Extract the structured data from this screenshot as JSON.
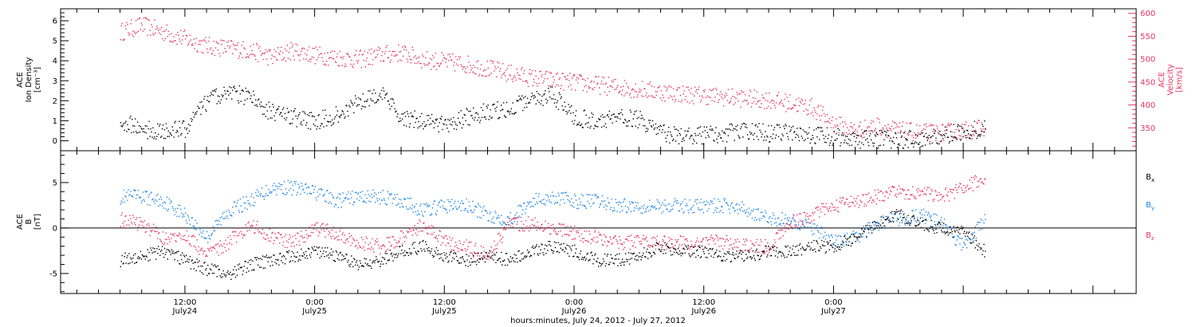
{
  "chart_data": [
    {
      "type": "scatter",
      "panel": "top",
      "y_axis_label_lines": [
        "ACE",
        "Ion Density",
        "[cm⁻³]"
      ],
      "y2_axis_label_lines": [
        "ACE",
        "Velocity",
        "[km/s]"
      ],
      "ylim": [
        -0.5,
        6.6
      ],
      "y2lim": [
        300,
        610
      ],
      "yticks": [
        "0",
        "1",
        "2",
        "3",
        "4",
        "5",
        "6"
      ],
      "y2ticks": [
        "350",
        "400",
        "450",
        "500",
        "550",
        "600"
      ],
      "colors": {
        "density": "#000000",
        "velocity": "#e8335e"
      },
      "series": [
        {
          "axis": "left",
          "color": "#000000",
          "x": [
            0,
            2,
            4,
            6,
            8,
            10,
            12,
            14,
            16,
            18,
            20,
            22,
            24,
            26,
            28,
            30,
            32,
            34,
            36,
            38,
            40,
            42,
            44,
            46,
            48,
            50,
            52,
            54,
            56,
            58,
            60,
            62,
            64,
            66,
            68,
            70,
            72,
            74,
            76,
            78,
            80
          ],
          "values": [
            1.0,
            0.6,
            0.5,
            0.6,
            2.0,
            2.5,
            2.2,
            1.4,
            1.2,
            1.0,
            1.3,
            2.0,
            2.4,
            1.2,
            1.0,
            0.8,
            1.2,
            1.5,
            1.6,
            2.1,
            2.3,
            1.2,
            1.0,
            1.2,
            1.1,
            0.4,
            0.3,
            0.3,
            0.4,
            0.5,
            0.4,
            0.4,
            0.3,
            0.2,
            0.1,
            0.1,
            0.1,
            0.1,
            0.3,
            0.5,
            0.6
          ]
        },
        {
          "axis": "right",
          "color": "#e8335e",
          "x": [
            0,
            2,
            4,
            6,
            8,
            10,
            12,
            14,
            16,
            18,
            20,
            22,
            24,
            26,
            28,
            30,
            32,
            34,
            36,
            38,
            40,
            42,
            44,
            46,
            48,
            50,
            52,
            54,
            56,
            58,
            60,
            62,
            64,
            66,
            68,
            70,
            72,
            74,
            76,
            78,
            80
          ],
          "values": [
            560,
            575,
            560,
            545,
            530,
            525,
            520,
            505,
            520,
            510,
            505,
            500,
            510,
            515,
            500,
            495,
            490,
            480,
            470,
            460,
            455,
            450,
            445,
            440,
            435,
            430,
            425,
            422,
            418,
            415,
            412,
            405,
            395,
            360,
            345,
            355,
            345,
            340,
            340,
            345,
            350
          ]
        }
      ]
    },
    {
      "type": "scatter",
      "panel": "bottom",
      "y_axis_label_lines": [
        "ACE",
        "B",
        "[nT]"
      ],
      "ylim": [
        -7.2,
        8.5
      ],
      "yticks": [
        "-5",
        "0",
        "5"
      ],
      "colors": {
        "bx": "#000000",
        "by": "#1f86e8",
        "bz": "#e8335e"
      },
      "legend": [
        {
          "text": "B",
          "sub": "x",
          "color": "#000000"
        },
        {
          "text": "B",
          "sub": "y",
          "color": "#1f86e8"
        },
        {
          "text": "B",
          "sub": "z",
          "color": "#e8335e"
        }
      ],
      "series": [
        {
          "color": "#000000",
          "x": [
            0,
            2,
            4,
            6,
            8,
            10,
            12,
            14,
            16,
            18,
            20,
            22,
            24,
            26,
            28,
            30,
            32,
            34,
            36,
            38,
            40,
            42,
            44,
            46,
            48,
            50,
            52,
            54,
            56,
            58,
            60,
            62,
            64,
            66,
            68,
            70,
            72,
            74,
            76,
            78,
            80
          ],
          "values": [
            -3.5,
            -3.0,
            -2.5,
            -3.5,
            -4.5,
            -5.0,
            -4.0,
            -3.5,
            -3.0,
            -2.5,
            -3.0,
            -4.0,
            -3.5,
            -2.5,
            -2.0,
            -3.0,
            -3.5,
            -3.0,
            -3.5,
            -2.5,
            -2.0,
            -2.5,
            -3.5,
            -3.5,
            -3.0,
            -2.0,
            -2.5,
            -2.5,
            -3.0,
            -3.0,
            -2.5,
            -2.5,
            -2.0,
            -2.0,
            -1.0,
            0.5,
            1.5,
            0.5,
            0.0,
            -0.5,
            -2.5
          ]
        },
        {
          "color": "#1f86e8",
          "x": [
            0,
            2,
            4,
            6,
            8,
            10,
            12,
            14,
            16,
            18,
            20,
            22,
            24,
            26,
            28,
            30,
            32,
            34,
            36,
            38,
            40,
            42,
            44,
            46,
            48,
            50,
            52,
            54,
            56,
            58,
            60,
            62,
            64,
            66,
            68,
            70,
            72,
            74,
            76,
            78,
            80
          ],
          "values": [
            3.5,
            3.5,
            3.0,
            1.5,
            -1.0,
            2.0,
            3.0,
            4.5,
            4.5,
            4.0,
            3.0,
            3.5,
            3.5,
            3.0,
            2.0,
            2.5,
            2.5,
            1.5,
            1.0,
            3.0,
            3.5,
            3.0,
            3.0,
            2.5,
            2.5,
            2.5,
            2.5,
            2.5,
            2.5,
            2.0,
            1.0,
            1.0,
            0.0,
            -1.5,
            -1.0,
            0.5,
            1.0,
            1.5,
            0.5,
            -2.0,
            1.0
          ]
        },
        {
          "color": "#e8335e",
          "x": [
            0,
            2,
            4,
            6,
            8,
            10,
            12,
            14,
            16,
            18,
            20,
            22,
            24,
            26,
            28,
            30,
            32,
            34,
            36,
            38,
            40,
            42,
            44,
            46,
            48,
            50,
            52,
            54,
            56,
            58,
            60,
            62,
            64,
            66,
            68,
            70,
            72,
            74,
            76,
            78,
            80
          ],
          "values": [
            1.0,
            0.5,
            -1.0,
            -0.5,
            -3.0,
            -1.5,
            0.5,
            -1.0,
            -1.5,
            0.0,
            -0.5,
            -1.5,
            -2.0,
            -1.0,
            0.5,
            -1.5,
            -2.0,
            -3.0,
            0.5,
            0.5,
            0.0,
            -0.5,
            -1.0,
            -1.5,
            -1.5,
            -1.5,
            -1.5,
            -1.5,
            -1.5,
            -2.0,
            -2.0,
            0.5,
            1.5,
            2.5,
            3.0,
            3.5,
            4.0,
            4.0,
            3.5,
            4.5,
            5.5
          ]
        }
      ]
    }
  ],
  "x_axis": {
    "title": "hours:minutes, July 24, 2012 - July 27, 2012",
    "xlim": [
      -5.5,
      94
    ],
    "tick_labels": [
      {
        "x": 6,
        "time": "12:00",
        "date": "July24"
      },
      {
        "x": 18,
        "time": "0:00",
        "date": "July25"
      },
      {
        "x": 30,
        "time": "12:00",
        "date": "July25"
      },
      {
        "x": 42,
        "time": "0:00",
        "date": "July26"
      },
      {
        "x": 54,
        "time": "12:00",
        "date": "July26"
      },
      {
        "x": 66,
        "time": "0:00",
        "date": "July27"
      }
    ]
  }
}
